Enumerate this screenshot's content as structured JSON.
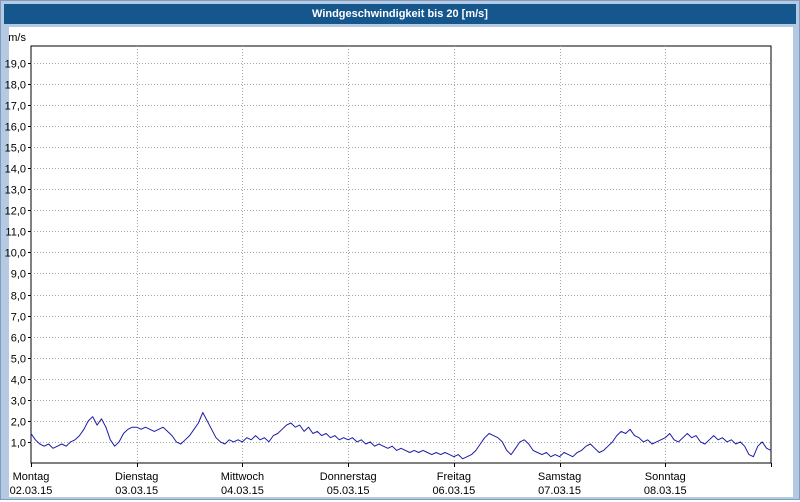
{
  "title_bar": {
    "text": "Windgeschwindigkeit bis 20 [m/s]"
  },
  "chart_data": {
    "type": "line",
    "title": "Windgeschwindigkeit bis 20 [m/s]",
    "ylabel": "m/s",
    "ylim": [
      0,
      19.8
    ],
    "y_tick_step": 1.0,
    "y_tick_labels": [
      "1,0",
      "2,0",
      "3,0",
      "4,0",
      "5,0",
      "6,0",
      "7,0",
      "8,0",
      "9,0",
      "10,0",
      "11,0",
      "12,0",
      "13,0",
      "14,0",
      "15,0",
      "16,0",
      "17,0",
      "18,0",
      "19,0"
    ],
    "grid": "dotted",
    "x_start_hour": 0,
    "x_end_hour": 168,
    "points_evenly_spaced": true,
    "days": [
      {
        "name": "Montag",
        "date": "02.03.15"
      },
      {
        "name": "Dienstag",
        "date": "03.03.15"
      },
      {
        "name": "Mittwoch",
        "date": "04.03.15"
      },
      {
        "name": "Donnerstag",
        "date": "05.03.15"
      },
      {
        "name": "Freitag",
        "date": "06.03.15"
      },
      {
        "name": "Samstag",
        "date": "07.03.15"
      },
      {
        "name": "Sonntag",
        "date": "08.03.15"
      }
    ],
    "series": [
      {
        "name": "Windgeschwindigkeit",
        "color": "#1b1ba6",
        "unit": "m/s",
        "values": [
          1.4,
          1.1,
          0.9,
          0.8,
          0.9,
          0.7,
          0.8,
          0.9,
          0.8,
          1.0,
          1.1,
          1.3,
          1.6,
          2.0,
          2.2,
          1.8,
          2.1,
          1.7,
          1.1,
          0.8,
          1.0,
          1.4,
          1.6,
          1.7,
          1.7,
          1.6,
          1.7,
          1.6,
          1.5,
          1.6,
          1.7,
          1.5,
          1.3,
          1.0,
          0.9,
          1.1,
          1.3,
          1.6,
          1.9,
          2.4,
          2.0,
          1.6,
          1.2,
          1.0,
          0.9,
          1.1,
          1.0,
          1.1,
          1.0,
          1.2,
          1.1,
          1.3,
          1.1,
          1.2,
          1.0,
          1.3,
          1.4,
          1.6,
          1.8,
          1.9,
          1.7,
          1.8,
          1.5,
          1.7,
          1.4,
          1.5,
          1.3,
          1.4,
          1.2,
          1.3,
          1.1,
          1.2,
          1.1,
          1.2,
          1.0,
          1.1,
          0.9,
          1.0,
          0.8,
          0.9,
          0.8,
          0.7,
          0.8,
          0.6,
          0.7,
          0.6,
          0.5,
          0.6,
          0.5,
          0.6,
          0.5,
          0.4,
          0.5,
          0.4,
          0.5,
          0.4,
          0.3,
          0.4,
          0.2,
          0.3,
          0.4,
          0.6,
          0.9,
          1.2,
          1.4,
          1.3,
          1.2,
          1.0,
          0.6,
          0.4,
          0.7,
          1.0,
          1.1,
          0.9,
          0.6,
          0.5,
          0.4,
          0.5,
          0.3,
          0.4,
          0.3,
          0.5,
          0.4,
          0.3,
          0.5,
          0.6,
          0.8,
          0.9,
          0.7,
          0.5,
          0.6,
          0.8,
          1.0,
          1.3,
          1.5,
          1.4,
          1.6,
          1.3,
          1.2,
          1.0,
          1.1,
          0.9,
          1.0,
          1.1,
          1.2,
          1.4,
          1.1,
          1.0,
          1.2,
          1.4,
          1.2,
          1.3,
          1.0,
          0.9,
          1.1,
          1.3,
          1.1,
          1.2,
          1.0,
          1.1,
          0.9,
          1.0,
          0.8,
          0.4,
          0.3,
          0.8,
          1.0,
          0.7,
          0.6
        ]
      }
    ],
    "colors": {
      "frame_background": "#b5c9e2",
      "title_bar_background": "#15568d",
      "plot_background": "#ffffff",
      "grid_line": "#a6a6a6",
      "axis_line": "#000000",
      "series_line": "#1b1ba6"
    }
  }
}
